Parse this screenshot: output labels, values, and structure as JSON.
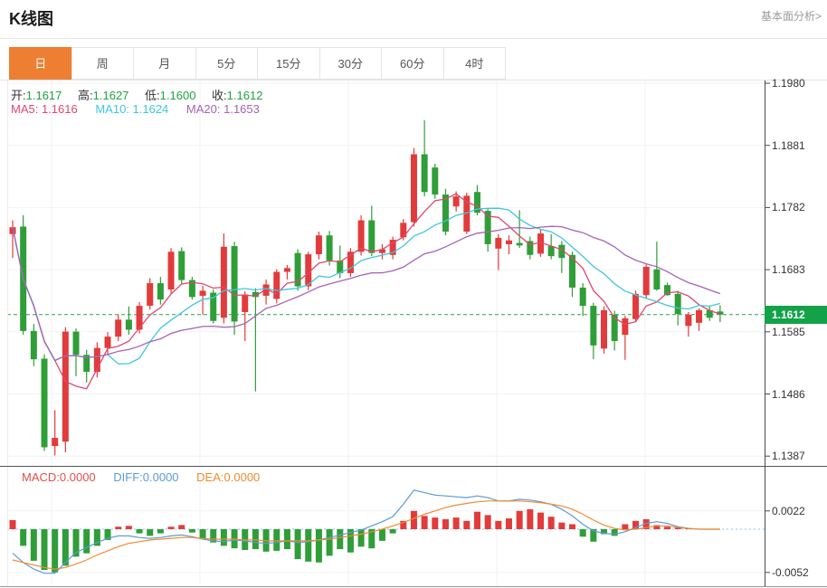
{
  "header": {
    "title": "K线图",
    "link": "基本面分析>"
  },
  "tabs": {
    "items": [
      "日",
      "周",
      "月",
      "5分",
      "15分",
      "30分",
      "60分",
      "4时"
    ],
    "active_index": 0
  },
  "legend": {
    "open_label": "开:",
    "open": "1.1617",
    "high_label": "高:",
    "high": "1.1627",
    "low_label": "低:",
    "low": "1.1600",
    "close_label": "收:",
    "close": "1.1612",
    "ma5": "MA5: 1.1616",
    "ma10": "MA10: 1.1624",
    "ma20": "MA20: 1.1653"
  },
  "macd_legend": {
    "macd": "MACD:0.0000",
    "diff": "DIFF:0.0000",
    "dea": "DEA:0.0000"
  },
  "colors": {
    "up": "#e23b3b",
    "down": "#2f9e38",
    "ma5": "#e0476e",
    "ma10": "#3fc6dc",
    "ma20": "#a564b4",
    "diff": "#5b9bd5",
    "dea": "#ef8b31",
    "accent": "#ee7e32",
    "price_tag": "#14a249",
    "price_line": "#2aa24b"
  },
  "chart_data": {
    "type": "candlestick",
    "title": "K线图",
    "period_selected": "日",
    "y_ticks": [
      "1.1980",
      "1.1881",
      "1.1782",
      "1.1683",
      "1.1585",
      "1.1486",
      "1.1387"
    ],
    "y_range": [
      1.1387,
      1.198
    ],
    "current_price": "1.1612",
    "grid": true,
    "legend_position": "top-left",
    "candles": [
      [
        1.174,
        1.1762,
        1.1702,
        1.1751
      ],
      [
        1.1752,
        1.177,
        1.158,
        1.1586
      ],
      [
        1.1586,
        1.1597,
        1.153,
        1.1541
      ],
      [
        1.1542,
        1.1549,
        1.1395,
        1.1401
      ],
      [
        1.1403,
        1.146,
        1.1388,
        1.1416
      ],
      [
        1.141,
        1.1592,
        1.1393,
        1.1585
      ],
      [
        1.1585,
        1.159,
        1.1514,
        1.1548
      ],
      [
        1.1548,
        1.1556,
        1.1504,
        1.1521
      ],
      [
        1.1521,
        1.1568,
        1.1512,
        1.1559
      ],
      [
        1.1559,
        1.1584,
        1.1548,
        1.1577
      ],
      [
        1.1577,
        1.1612,
        1.157,
        1.1604
      ],
      [
        1.1604,
        1.1625,
        1.158,
        1.1588
      ],
      [
        1.1588,
        1.1632,
        1.1582,
        1.1626
      ],
      [
        1.1626,
        1.167,
        1.162,
        1.1662
      ],
      [
        1.1662,
        1.1672,
        1.1628,
        1.1636
      ],
      [
        1.1652,
        1.1718,
        1.1645,
        1.1712
      ],
      [
        1.1713,
        1.1719,
        1.166,
        1.1667
      ],
      [
        1.1667,
        1.1672,
        1.1636,
        1.164
      ],
      [
        1.1642,
        1.1658,
        1.1612,
        1.165
      ],
      [
        1.1647,
        1.1652,
        1.1598,
        1.1602
      ],
      [
        1.1607,
        1.1741,
        1.1598,
        1.172
      ],
      [
        1.1721,
        1.1728,
        1.158,
        1.1601
      ],
      [
        1.1616,
        1.1649,
        1.157,
        1.1644
      ],
      [
        1.1648,
        1.1654,
        1.149,
        1.164
      ],
      [
        1.1642,
        1.1668,
        1.1628,
        1.166
      ],
      [
        1.1637,
        1.1684,
        1.163,
        1.168
      ],
      [
        1.168,
        1.1691,
        1.1668,
        1.1686
      ],
      [
        1.171,
        1.1716,
        1.165,
        1.1657
      ],
      [
        1.1657,
        1.1712,
        1.1651,
        1.1708
      ],
      [
        1.1708,
        1.1744,
        1.17,
        1.1738
      ],
      [
        1.1738,
        1.1745,
        1.169,
        1.1698
      ],
      [
        1.1698,
        1.1722,
        1.167,
        1.1678
      ],
      [
        1.1678,
        1.1718,
        1.1672,
        1.1712
      ],
      [
        1.1712,
        1.177,
        1.1706,
        1.1762
      ],
      [
        1.1762,
        1.1785,
        1.1705,
        1.171
      ],
      [
        1.171,
        1.1724,
        1.17,
        1.1716
      ],
      [
        1.1707,
        1.1736,
        1.17,
        1.1731
      ],
      [
        1.1735,
        1.1764,
        1.173,
        1.1758
      ],
      [
        1.1759,
        1.1877,
        1.1752,
        1.1867
      ],
      [
        1.1867,
        1.1921,
        1.18,
        1.1807
      ],
      [
        1.1846,
        1.1852,
        1.1796,
        1.1803
      ],
      [
        1.1803,
        1.1812,
        1.1738,
        1.1744
      ],
      [
        1.1784,
        1.1808,
        1.1776,
        1.18
      ],
      [
        1.1744,
        1.1806,
        1.174,
        1.1801
      ],
      [
        1.1807,
        1.1818,
        1.177,
        1.1774
      ],
      [
        1.1777,
        1.1782,
        1.1712,
        1.1724
      ],
      [
        1.1717,
        1.174,
        1.1683,
        1.1734
      ],
      [
        1.1724,
        1.1738,
        1.1708,
        1.173
      ],
      [
        1.1726,
        1.1778,
        1.1718,
        1.1722
      ],
      [
        1.1729,
        1.1736,
        1.17,
        1.1707
      ],
      [
        1.1709,
        1.1748,
        1.1704,
        1.1741
      ],
      [
        1.1721,
        1.174,
        1.17,
        1.1705
      ],
      [
        1.1723,
        1.1729,
        1.1678,
        1.1702
      ],
      [
        1.1707,
        1.1712,
        1.164,
        1.1655
      ],
      [
        1.1655,
        1.1662,
        1.161,
        1.1626
      ],
      [
        1.1626,
        1.1631,
        1.1541,
        1.1563
      ],
      [
        1.1558,
        1.1625,
        1.155,
        1.1619
      ],
      [
        1.1612,
        1.1618,
        1.1555,
        1.157
      ],
      [
        1.158,
        1.161,
        1.154,
        1.1606
      ],
      [
        1.1605,
        1.165,
        1.16,
        1.1645
      ],
      [
        1.1643,
        1.1692,
        1.1638,
        1.1688
      ],
      [
        1.1684,
        1.1728,
        1.165,
        1.1652
      ],
      [
        1.1659,
        1.1663,
        1.1642,
        1.1643
      ],
      [
        1.1645,
        1.165,
        1.1595,
        1.1613
      ],
      [
        1.1594,
        1.1616,
        1.1577,
        1.1612
      ],
      [
        1.1599,
        1.1622,
        1.1586,
        1.1619
      ],
      [
        1.1619,
        1.1626,
        1.1602,
        1.1607
      ],
      [
        1.1617,
        1.1627,
        1.16,
        1.1612
      ]
    ],
    "ma_periods": [
      5,
      10,
      20
    ],
    "sub": {
      "type": "macd",
      "y_ticks": [
        "0.0022",
        "-0.0052"
      ],
      "hist": [
        0.0011,
        -0.002,
        -0.0038,
        -0.0049,
        -0.0052,
        -0.0044,
        -0.0033,
        -0.0029,
        -0.002,
        -0.0013,
        0.0003,
        0.0004,
        -0.0005,
        -0.0008,
        -0.0005,
        0.0003,
        0.0005,
        -0.0004,
        -0.0012,
        -0.0016,
        -0.002,
        -0.0023,
        -0.0025,
        -0.0024,
        -0.0027,
        -0.0026,
        -0.0024,
        -0.0036,
        -0.0039,
        -0.004,
        -0.0032,
        -0.0024,
        -0.0028,
        -0.0021,
        -0.0023,
        -0.0014,
        -0.0005,
        0.001,
        0.0022,
        0.0016,
        0.0014,
        0.0012,
        0.0014,
        0.001,
        0.0021,
        0.0017,
        0.001,
        0.0013,
        0.0022,
        0.0024,
        0.002,
        0.0015,
        0.0008,
        0.0006,
        -0.0009,
        -0.0015,
        -0.0006,
        -0.0008,
        0.0006,
        0.001,
        0.0012,
        0.0005,
        0.0003,
        0.0002,
        0.0001,
        0,
        0,
        0
      ],
      "diff": [
        -0.0029,
        -0.004,
        -0.0048,
        -0.0053,
        -0.0053,
        -0.004,
        -0.0028,
        -0.0022,
        -0.0016,
        -0.0011,
        -0.0008,
        -0.0008,
        -0.001,
        -0.0011,
        -0.001,
        -0.0008,
        -0.0007,
        -0.0009,
        -0.0012,
        -0.0014,
        -0.0015,
        -0.0013,
        -0.0014,
        -0.0016,
        -0.0017,
        -0.0016,
        -0.0014,
        -0.0016,
        -0.0015,
        -0.0013,
        -0.001,
        -0.0007,
        -0.0004,
        -0.0001,
        0.0004,
        0.0009,
        0.0015,
        0.003,
        0.0047,
        0.0044,
        0.0041,
        0.004,
        0.0039,
        0.0038,
        0.004,
        0.0038,
        0.0034,
        0.0034,
        0.0036,
        0.0035,
        0.0033,
        0.003,
        0.0024,
        0.0016,
        0.0006,
        -0.0002,
        -0.0005,
        -0.0006,
        -0.0003,
        0.0002,
        0.0007,
        0.0009,
        0.0007,
        0.0003,
        0.0001,
        0,
        0,
        0
      ],
      "dea": [
        -0.0037,
        -0.004,
        -0.0043,
        -0.0046,
        -0.0048,
        -0.0046,
        -0.0042,
        -0.0037,
        -0.0031,
        -0.0026,
        -0.0021,
        -0.0017,
        -0.0015,
        -0.0013,
        -0.0012,
        -0.0011,
        -0.001,
        -0.001,
        -0.0011,
        -0.0012,
        -0.0012,
        -0.0012,
        -0.0013,
        -0.0013,
        -0.0014,
        -0.0014,
        -0.0014,
        -0.0014,
        -0.0014,
        -0.0013,
        -0.0012,
        -0.001,
        -0.0008,
        -0.0006,
        -0.0003,
        0.0,
        0.0004,
        0.0008,
        0.0013,
        0.0018,
        0.0022,
        0.0026,
        0.0029,
        0.0031,
        0.0033,
        0.0034,
        0.0034,
        0.0034,
        0.0034,
        0.0033,
        0.0032,
        0.003,
        0.0028,
        0.0024,
        0.0018,
        0.0011,
        0.0005,
        0.0001,
        -0.0001,
        0.0,
        0.0002,
        0.0004,
        0.0004,
        0.0002,
        0.0001,
        0,
        0,
        0
      ]
    }
  }
}
